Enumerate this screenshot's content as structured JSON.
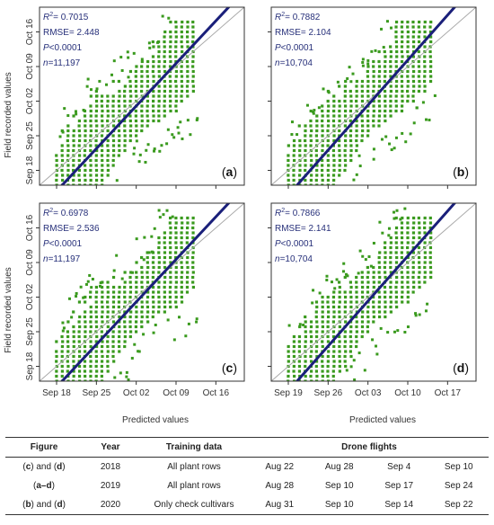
{
  "chart_data": {
    "type": "scatter",
    "xlabel": "Predicted values",
    "ylabel": "Field recorded values",
    "panels": [
      {
        "label": "a",
        "stats": {
          "r2": "0.7015",
          "rmse": "2.448",
          "p": "<0.0001",
          "n": "11,197"
        },
        "x_ticks": [],
        "y_ticks": [
          "Sep 18",
          "Sep 25",
          "Oct 02",
          "Oct 09",
          "Oct 16"
        ],
        "domain_days": [
          -3,
          33
        ],
        "tick_days": [
          0,
          7,
          14,
          21,
          28
        ],
        "fit": {
          "slope": 1.23,
          "intercept": -4.2
        },
        "cloud": {
          "x_min": 0,
          "x_max": 24,
          "y_min": -3,
          "y_max": 30
        }
      },
      {
        "label": "b",
        "stats": {
          "r2": "0.7882",
          "rmse": "2.104",
          "p": "<0.0001",
          "n": "10,704"
        },
        "x_ticks": [],
        "y_ticks": [],
        "domain_days": [
          -3,
          33
        ],
        "tick_days": [
          0,
          7,
          14,
          21,
          28
        ],
        "fit": {
          "slope": 1.3,
          "intercept": -5.0
        },
        "cloud": {
          "x_min": 0,
          "x_max": 25,
          "y_min": -3,
          "y_max": 30
        }
      },
      {
        "label": "c",
        "stats": {
          "r2": "0.6978",
          "rmse": "2.536",
          "p": "<0.0001",
          "n": "11,197"
        },
        "x_ticks": [
          "Sep 18",
          "Sep 25",
          "Oct 02",
          "Oct 09",
          "Oct 16"
        ],
        "y_ticks": [
          "Sep 18",
          "Sep 25",
          "Oct 02",
          "Oct 09",
          "Oct 16"
        ],
        "domain_days": [
          -3,
          33
        ],
        "tick_days": [
          0,
          7,
          14,
          21,
          28
        ],
        "fit": {
          "slope": 1.23,
          "intercept": -4.2
        },
        "cloud": {
          "x_min": 0,
          "x_max": 24,
          "y_min": -3,
          "y_max": 30
        }
      },
      {
        "label": "d",
        "stats": {
          "r2": "0.7866",
          "rmse": "2.141",
          "p": "<0.0001",
          "n": "10,704"
        },
        "x_ticks": [
          "Sep 19",
          "Sep 26",
          "Oct 03",
          "Oct 10",
          "Oct 17"
        ],
        "y_ticks": [],
        "domain_days": [
          -3,
          33
        ],
        "tick_days": [
          0,
          7,
          14,
          21,
          28
        ],
        "fit": {
          "slope": 1.3,
          "intercept": -5.0
        },
        "cloud": {
          "x_min": 0,
          "x_max": 25,
          "y_min": -3,
          "y_max": 30
        }
      }
    ],
    "colors": {
      "points": "#3a9a1e",
      "fit_line": "#1a1f7a",
      "identity_line": "#a8a8a8",
      "stat_text": "#27307a"
    }
  },
  "table": {
    "headers": [
      "Figure",
      "Year",
      "Training data",
      "Drone flights"
    ],
    "rows": [
      {
        "figure_a": "c",
        "figure_mid": ") and (",
        "figure_b": "d",
        "figure_open": "(",
        "figure_close": ")",
        "year": "2018",
        "training": "All plant rows",
        "flights": [
          "Aug 22",
          "Aug 28",
          "Sep 4",
          "Sep 10"
        ]
      },
      {
        "figure_a": "a–d",
        "figure_mid": "",
        "figure_b": "",
        "figure_open": "(",
        "figure_close": ")",
        "year": "2019",
        "training": "All plant rows",
        "flights": [
          "Aug 28",
          "Sep 10",
          "Sep 17",
          "Sep 24"
        ]
      },
      {
        "figure_a": "b",
        "figure_mid": ") and (",
        "figure_b": "d",
        "figure_open": "(",
        "figure_close": ")",
        "year": "2020",
        "training": "Only check cultivars",
        "flights": [
          "Aug 31",
          "Sep 10",
          "Sep 14",
          "Sep 22"
        ]
      }
    ]
  }
}
